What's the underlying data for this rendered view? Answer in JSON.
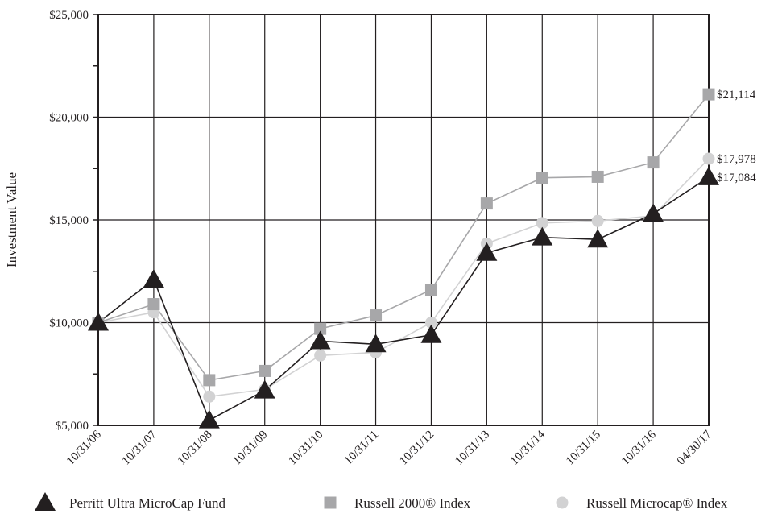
{
  "chart_data": {
    "type": "line",
    "title": "",
    "xlabel": "",
    "ylabel": "Investment Value",
    "ylim": [
      5000,
      25000
    ],
    "yticks": [
      5000,
      10000,
      15000,
      20000,
      25000
    ],
    "ytick_labels": [
      "$5,000",
      "$10,000",
      "$15,000",
      "$20,000",
      "$25,000"
    ],
    "grid": true,
    "legend_position": "bottom",
    "categories": [
      "10/31/06",
      "10/31/07",
      "10/31/08",
      "10/31/09",
      "10/31/10",
      "10/31/11",
      "10/31/12",
      "10/31/13",
      "10/31/14",
      "10/31/15",
      "10/31/16",
      "04/30/17"
    ],
    "series": [
      {
        "name": "Perritt Ultra MicroCap Fund",
        "marker": "triangle",
        "color": "#231f20",
        "values": [
          10000,
          12100,
          5250,
          6700,
          9100,
          8950,
          9400,
          13400,
          14150,
          14050,
          15300,
          17084
        ],
        "end_label": "$17,084"
      },
      {
        "name": "Russell 2000® Index",
        "marker": "square",
        "color": "#a7a7a9",
        "values": [
          10000,
          10900,
          7200,
          7650,
          9700,
          10350,
          11600,
          15800,
          17050,
          17100,
          17800,
          21114
        ],
        "end_label": "$21,114"
      },
      {
        "name": "Russell Microcap® Index",
        "marker": "circle",
        "color": "#d2d2d3",
        "values": [
          10000,
          10500,
          6400,
          6750,
          8400,
          8550,
          10000,
          13850,
          14850,
          14950,
          15200,
          17978
        ],
        "end_label": "$17,978"
      }
    ]
  }
}
